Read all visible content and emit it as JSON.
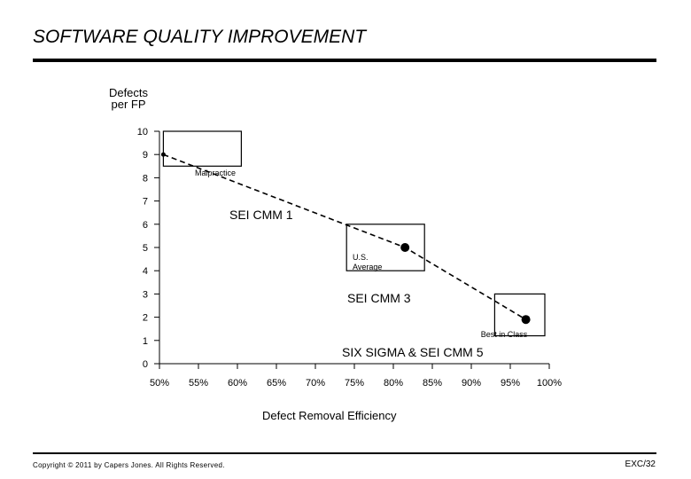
{
  "page": {
    "title": "SOFTWARE QUALITY IMPROVEMENT",
    "copyright": "Copyright © 2011 by Capers Jones. All Rights Reserved.",
    "page_number": "EXC/32"
  },
  "chart_data": {
    "type": "scatter",
    "ylabel": [
      "Defects",
      "per FP"
    ],
    "xlabel": "Defect Removal Efficiency",
    "xlim": [
      50,
      100
    ],
    "ylim": [
      0,
      10
    ],
    "x_ticks": [
      "50%",
      "55%",
      "60%",
      "65%",
      "70%",
      "75%",
      "80%",
      "85%",
      "90%",
      "95%",
      "100%"
    ],
    "y_ticks": [
      "0",
      "1",
      "2",
      "3",
      "4",
      "5",
      "6",
      "7",
      "8",
      "9",
      "10"
    ],
    "points": [
      {
        "label": "Malpractice",
        "x": 50.5,
        "y": 9.0
      },
      {
        "label": "U.S. Average",
        "x": 81.5,
        "y": 5.0
      },
      {
        "label": "Best in Class",
        "x": 97,
        "y": 1.9
      }
    ],
    "boxes": [
      {
        "x0": 50.5,
        "x1": 60.5,
        "y0": 8.5,
        "y1": 10.0
      },
      {
        "x0": 74.0,
        "x1": 84.0,
        "y0": 4.0,
        "y1": 6.0
      },
      {
        "x0": 93.0,
        "x1": 103.0,
        "y0": 1.2,
        "y1": 3.0
      }
    ],
    "annotations": [
      "SEI CMM 1",
      "SEI CMM 3",
      "SIX SIGMA & SEI CMM 5"
    ],
    "trend_line": "dashed"
  }
}
